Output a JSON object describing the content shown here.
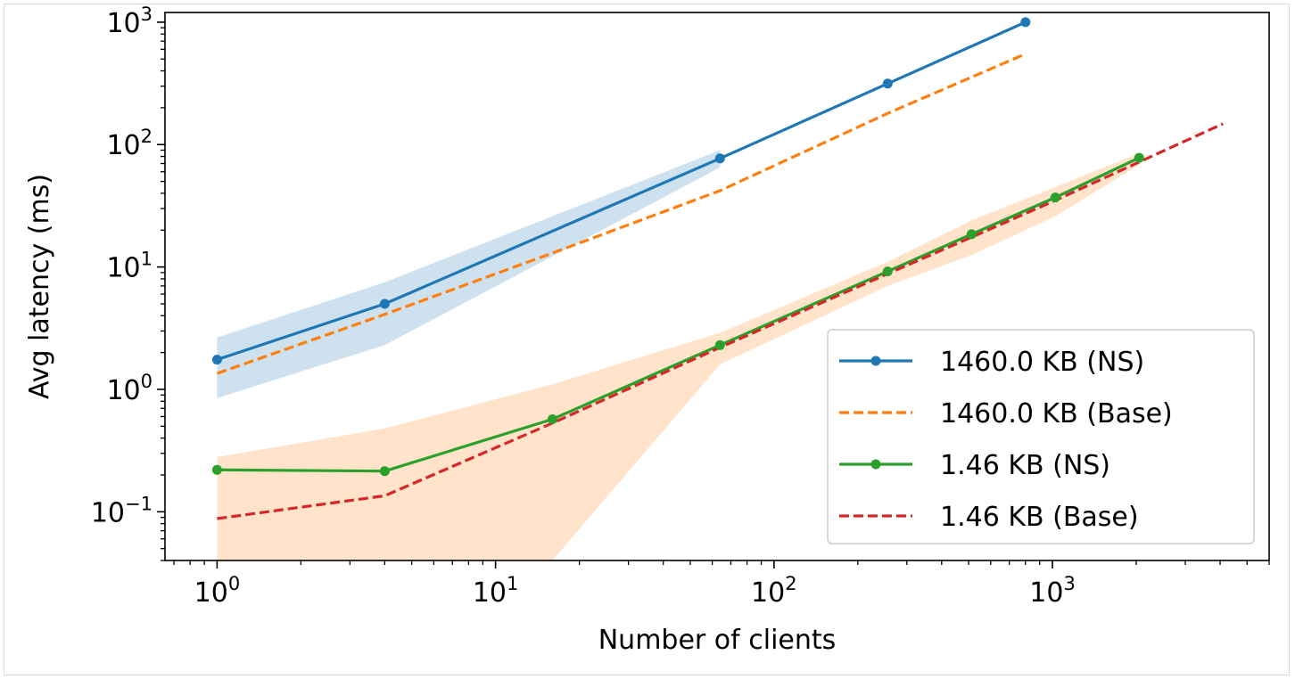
{
  "chart_data": {
    "type": "line",
    "xscale": "log",
    "yscale": "log",
    "xlabel": "Number of clients",
    "ylabel": "Avg latency (ms)",
    "xlim": [
      0.65,
      6000
    ],
    "ylim": [
      0.04,
      1200
    ],
    "x_ticks": [
      {
        "value": 1,
        "base": "10",
        "exp": "0"
      },
      {
        "value": 10,
        "base": "10",
        "exp": "1"
      },
      {
        "value": 100,
        "base": "10",
        "exp": "2"
      },
      {
        "value": 1000,
        "base": "10",
        "exp": "3"
      }
    ],
    "y_ticks": [
      {
        "value": 0.1,
        "base": "10",
        "exp": "−1"
      },
      {
        "value": 1,
        "base": "10",
        "exp": "0"
      },
      {
        "value": 10,
        "base": "10",
        "exp": "1"
      },
      {
        "value": 100,
        "base": "10",
        "exp": "2"
      },
      {
        "value": 1000,
        "base": "10",
        "exp": "3"
      }
    ],
    "grid": false,
    "legend_position": "lower-right",
    "series": [
      {
        "name": "1460.0 KB (NS)",
        "color": "#1f77b4",
        "style": "solid",
        "marker": true,
        "x": [
          1,
          4,
          64,
          256,
          800
        ],
        "y": [
          1.75,
          5.0,
          77,
          315,
          1000
        ],
        "band": {
          "color": "#1f77b4",
          "x": [
            1,
            4,
            64
          ],
          "lower": [
            0.85,
            2.3,
            65
          ],
          "upper": [
            2.65,
            7.5,
            90
          ]
        }
      },
      {
        "name": "1460.0 KB (Base)",
        "color": "#ff7f0e",
        "style": "dashed",
        "marker": false,
        "x": [
          1,
          4,
          16,
          64,
          256,
          800
        ],
        "y": [
          1.35,
          4.1,
          13,
          42,
          180,
          550
        ]
      },
      {
        "name": "1.46 KB (NS)",
        "color": "#2ca02c",
        "style": "solid",
        "marker": true,
        "x": [
          1,
          4,
          16,
          64,
          256,
          512,
          1024,
          2048
        ],
        "y": [
          0.22,
          0.215,
          0.57,
          2.3,
          9.2,
          18.5,
          37,
          78
        ]
      },
      {
        "name": "1.46 KB (Base)",
        "color": "#d62728",
        "style": "dashed",
        "marker": false,
        "x": [
          1,
          4,
          16,
          64,
          256,
          512,
          1024,
          2048,
          4096
        ],
        "y": [
          0.088,
          0.135,
          0.53,
          2.2,
          8.8,
          17.5,
          35,
          72,
          148
        ],
        "band": {
          "color": "#ff7f0e",
          "x": [
            1,
            4,
            16,
            64,
            256,
            512,
            1024,
            2048
          ],
          "lower": [
            0.04,
            0.04,
            0.04,
            1.6,
            7.0,
            12.5,
            26,
            68
          ],
          "upper": [
            0.28,
            0.48,
            1.1,
            2.9,
            11,
            24,
            45,
            85
          ]
        }
      }
    ]
  }
}
